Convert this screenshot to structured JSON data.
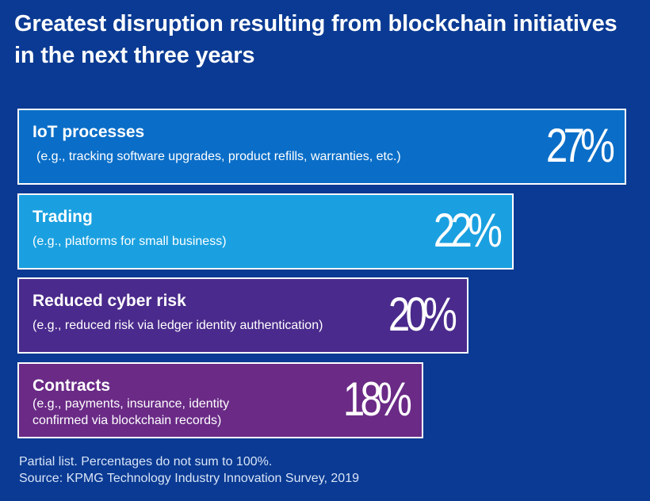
{
  "chart_data": {
    "type": "bar",
    "orientation": "horizontal",
    "title": "Greatest disruption resulting from blockchain initiatives in the next three years",
    "categories": [
      "IoT processes",
      "Trading",
      "Reduced cyber risk",
      "Contracts"
    ],
    "descriptions": [
      "(e.g., tracking software upgrades, product refills, warranties, etc.)",
      "(e.g., platforms for small business)",
      "(e.g., reduced risk via ledger identity authentication)",
      "(e.g., payments, insurance, identity confirmed via blockchain records)"
    ],
    "values": [
      27,
      22,
      20,
      18
    ],
    "value_labels": [
      "27%",
      "22%",
      "20%",
      "18%"
    ],
    "colors": [
      "#0a6ec8",
      "#1aa0e0",
      "#4a2a8c",
      "#6a2a86"
    ],
    "unit": "%",
    "xlim": [
      0,
      27
    ],
    "notes": [
      "Partial list. Percentages do not sum to 100%.",
      "Source: KPMG Technology Industry Innovation Survey, 2019"
    ]
  }
}
